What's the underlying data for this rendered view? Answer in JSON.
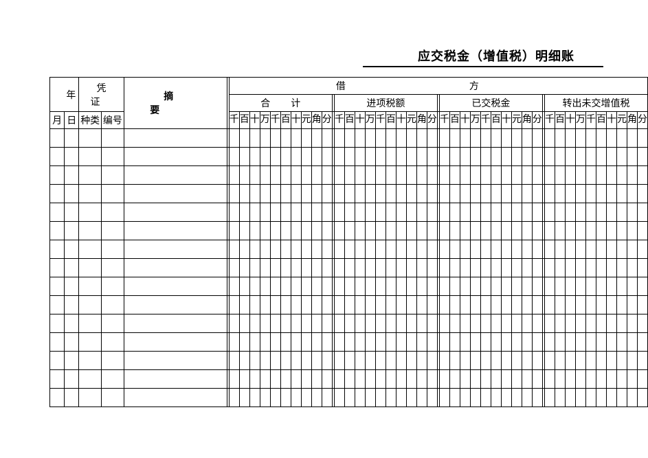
{
  "title": "应交税金（增值税）明细账",
  "headers": {
    "year": "年",
    "month": "月",
    "day": "日",
    "voucher": "凭证",
    "voucher_type": "种类",
    "voucher_num": "编号",
    "summary": "摘要",
    "debit": "借方",
    "subtotal": "合计",
    "input_tax": "进项税额",
    "paid_tax": "已交税金",
    "transfer_out": "转出未交增值税",
    "digits": [
      "千",
      "百",
      "十",
      "万",
      "千",
      "百",
      "十",
      "元",
      "角",
      "分"
    ]
  },
  "body_rows": 15,
  "colors": {
    "border": "#000000",
    "background": "#ffffff",
    "text": "#000000"
  }
}
